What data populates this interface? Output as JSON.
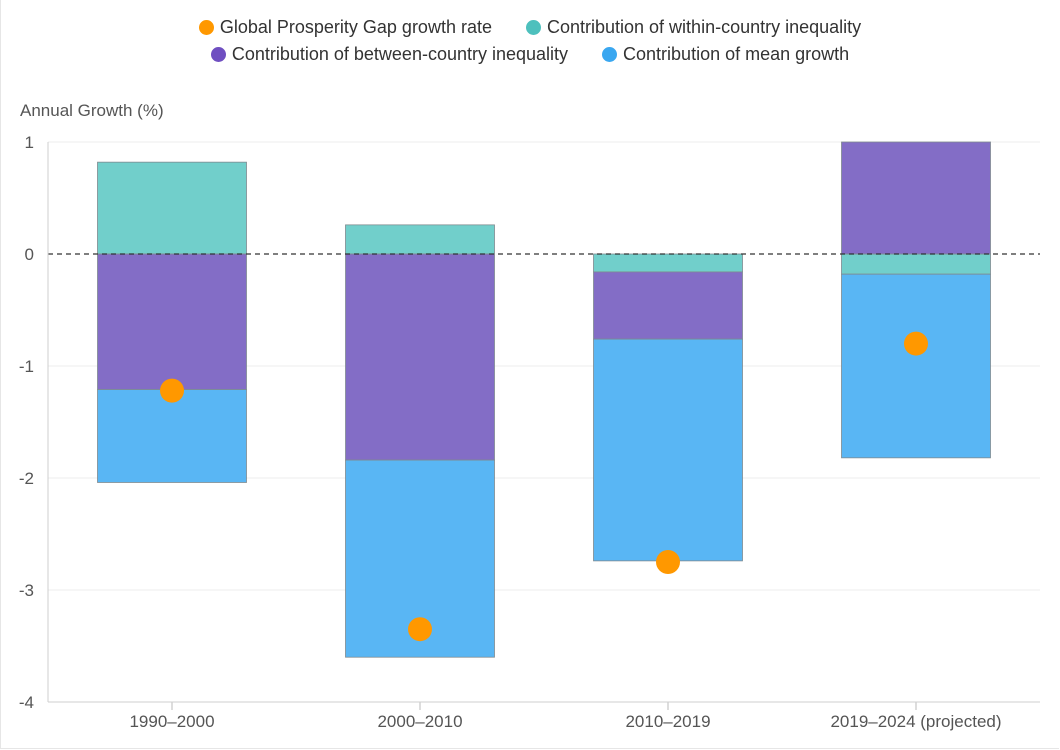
{
  "legend": {
    "items": [
      {
        "label": "Global Prosperity Gap growth rate",
        "color": "#ff9800"
      },
      {
        "label": "Contribution of within-country inequality",
        "color": "#4dc0bd"
      },
      {
        "label": "Contribution of between-country inequality",
        "color": "#6f4fc1"
      },
      {
        "label": "Contribution of mean growth",
        "color": "#3aa7f0"
      }
    ]
  },
  "chart_data": {
    "type": "bar",
    "stacked": true,
    "ylabel": "Annual Growth (%)",
    "ylim": [
      -4,
      1
    ],
    "yticks": [
      1,
      0,
      -1,
      -2,
      -3,
      -4
    ],
    "categories": [
      "1990–2000",
      "2000–2010",
      "2010–2019",
      "2019–2024 (projected)"
    ],
    "series": [
      {
        "name": "Contribution of within-country inequality",
        "color": "#71cfcb",
        "values": [
          0.82,
          0.26,
          -0.16,
          -0.18
        ]
      },
      {
        "name": "Contribution of between-country inequality",
        "color": "#836dc6",
        "values": [
          -1.21,
          -1.84,
          -0.6,
          1.0
        ]
      },
      {
        "name": "Contribution of mean growth",
        "color": "#59b6f4",
        "values": [
          -0.83,
          -1.76,
          -1.98,
          -1.64
        ]
      }
    ],
    "points": {
      "name": "Global Prosperity Gap growth rate",
      "color": "#ff9800",
      "values": [
        -1.22,
        -3.35,
        -2.75,
        -0.8
      ]
    },
    "zero_line": "dashed",
    "grid": true
  }
}
